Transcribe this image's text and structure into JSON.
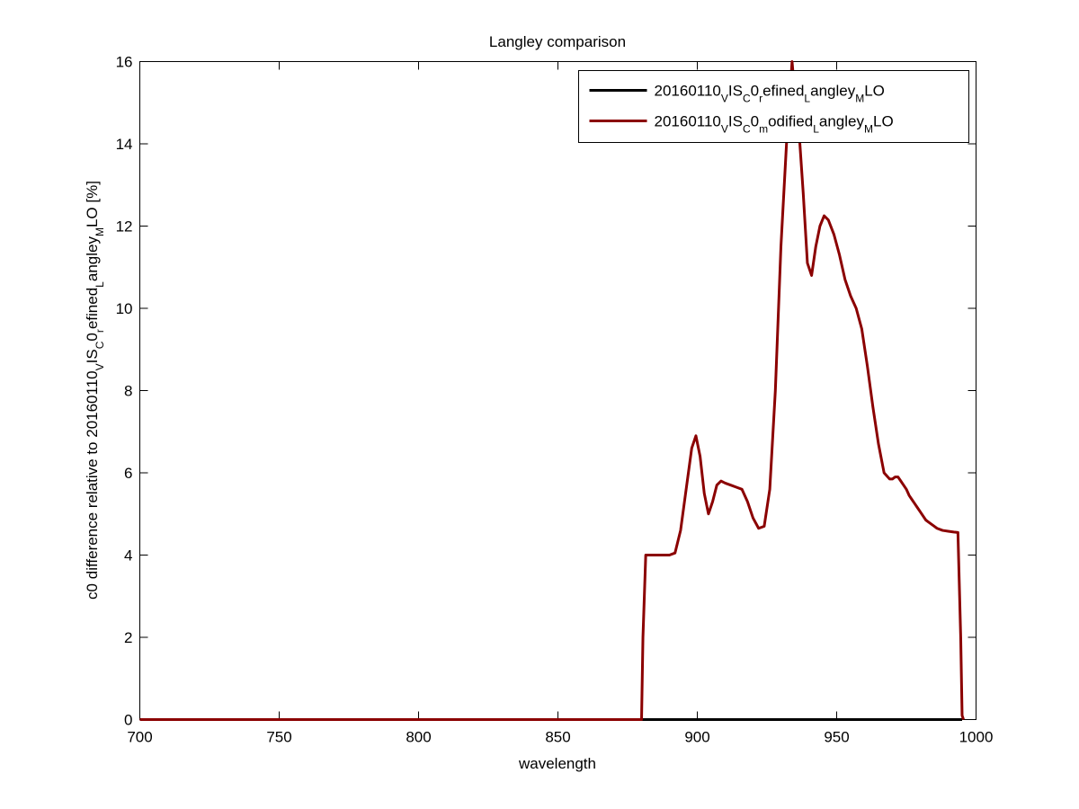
{
  "chart_data": {
    "type": "line",
    "title": "Langley comparison",
    "xlabel": "wavelength",
    "ylabel": {
      "parts": [
        {
          "t": "c0 difference relative to 20160110",
          "sub": false
        },
        {
          "t": "V",
          "sub": true
        },
        {
          "t": "IS",
          "sub": false
        },
        {
          "t": "C",
          "sub": true
        },
        {
          "t": "0",
          "sub": false
        },
        {
          "t": "r",
          "sub": true
        },
        {
          "t": "efined",
          "sub": false
        },
        {
          "t": "L",
          "sub": true
        },
        {
          "t": "angley",
          "sub": false
        },
        {
          "t": "M",
          "sub": true
        },
        {
          "t": "LO [%]",
          "sub": false
        }
      ]
    },
    "xlim": [
      700,
      1000
    ],
    "ylim": [
      0,
      16
    ],
    "xticks": [
      700,
      750,
      800,
      850,
      900,
      950,
      1000
    ],
    "yticks": [
      0,
      2,
      4,
      6,
      8,
      10,
      12,
      14,
      16
    ],
    "grid": false,
    "legend_position": "top-right",
    "series": [
      {
        "name_parts": [
          {
            "t": "20160110",
            "sub": false
          },
          {
            "t": "V",
            "sub": true
          },
          {
            "t": "IS",
            "sub": false
          },
          {
            "t": "C",
            "sub": true
          },
          {
            "t": "0",
            "sub": false
          },
          {
            "t": "r",
            "sub": true
          },
          {
            "t": "efined",
            "sub": false
          },
          {
            "t": "L",
            "sub": true
          },
          {
            "t": "angley",
            "sub": false
          },
          {
            "t": "M",
            "sub": true
          },
          {
            "t": "LO",
            "sub": false
          }
        ],
        "color": "#000000",
        "x": [
          700,
          995
        ],
        "y": [
          0,
          0
        ]
      },
      {
        "name_parts": [
          {
            "t": "20160110",
            "sub": false
          },
          {
            "t": "V",
            "sub": true
          },
          {
            "t": "IS",
            "sub": false
          },
          {
            "t": "C",
            "sub": true
          },
          {
            "t": "0",
            "sub": false
          },
          {
            "t": "m",
            "sub": true
          },
          {
            "t": "odified",
            "sub": false
          },
          {
            "t": "L",
            "sub": true
          },
          {
            "t": "angley",
            "sub": false
          },
          {
            "t": "M",
            "sub": true
          },
          {
            "t": "LO",
            "sub": false
          }
        ],
        "color": "#8b0000",
        "x": [
          700,
          880,
          880.5,
          881.5,
          884,
          887,
          890,
          892,
          894,
          896,
          898,
          899.5,
          901,
          902.5,
          904,
          905.5,
          907,
          908.5,
          910,
          912,
          914,
          916,
          918,
          920,
          922,
          924,
          926,
          928,
          930,
          932,
          934,
          935.5,
          936.5,
          938,
          939.5,
          941,
          942.5,
          944,
          945.5,
          947,
          949,
          951,
          953,
          955,
          957,
          959,
          961,
          963,
          965,
          967,
          969,
          970,
          971,
          972,
          973,
          974,
          975,
          976,
          977,
          978,
          979,
          980,
          981,
          982,
          983,
          984,
          985,
          986,
          988,
          990,
          992,
          993.5,
          994.5,
          995,
          995.5
        ],
        "y": [
          0,
          0,
          2.0,
          4.0,
          4.0,
          4.0,
          4.0,
          4.05,
          4.6,
          5.6,
          6.6,
          6.9,
          6.4,
          5.5,
          5.0,
          5.3,
          5.7,
          5.8,
          5.75,
          5.7,
          5.65,
          5.6,
          5.3,
          4.9,
          4.65,
          4.7,
          5.6,
          8.0,
          11.5,
          14.0,
          16.0,
          14.8,
          14.3,
          12.8,
          11.1,
          10.8,
          11.5,
          12.0,
          12.25,
          12.15,
          11.8,
          11.3,
          10.7,
          10.3,
          10.0,
          9.5,
          8.6,
          7.6,
          6.7,
          6.0,
          5.85,
          5.85,
          5.9,
          5.9,
          5.8,
          5.7,
          5.6,
          5.45,
          5.35,
          5.25,
          5.15,
          5.05,
          4.95,
          4.85,
          4.8,
          4.75,
          4.7,
          4.65,
          4.6,
          4.58,
          4.56,
          4.55,
          2.0,
          0.1,
          0
        ]
      }
    ]
  }
}
